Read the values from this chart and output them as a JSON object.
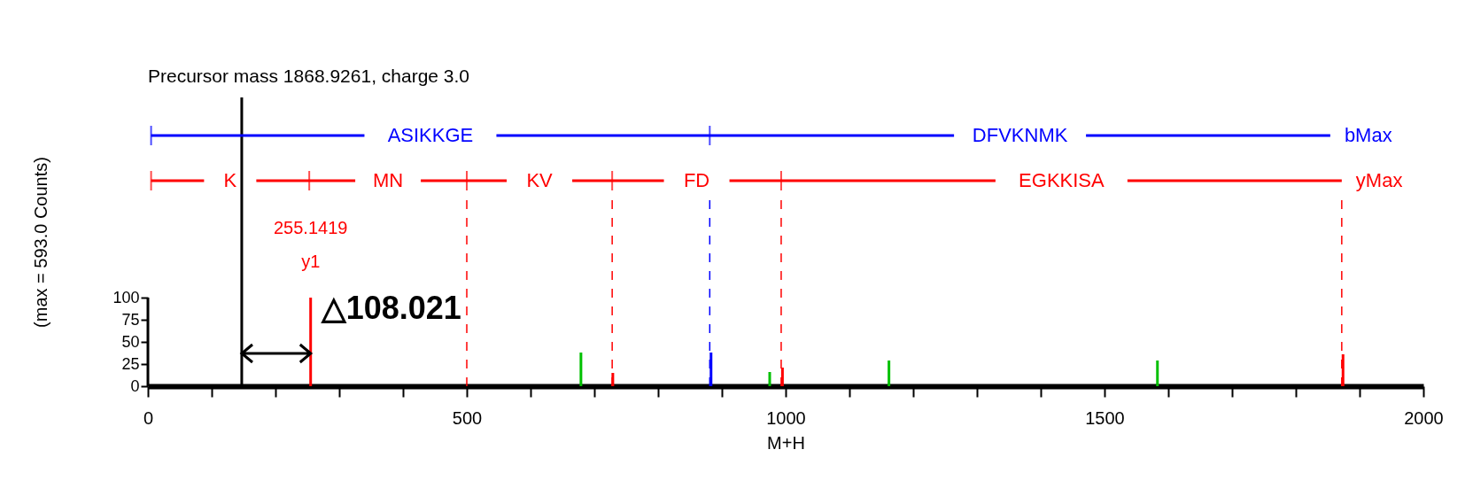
{
  "chart_data": {
    "type": "bar",
    "title": "Precursor mass 1868.9261, charge 3.0",
    "xlabel": "M+H",
    "ylabel": "(max = 593.0 Counts)",
    "xlim": [
      0,
      2000
    ],
    "ylim": [
      0,
      326
    ],
    "xticks": [
      0,
      {
        "value": 100,
        "label": null
      },
      {
        "value": 200,
        "label": null
      },
      {
        "value": 300,
        "label": null
      },
      {
        "value": 400,
        "label": null
      },
      500,
      {
        "value": 600,
        "label": null
      },
      {
        "value": 700,
        "label": null
      },
      {
        "value": 800,
        "label": null
      },
      {
        "value": 900,
        "label": null
      },
      1000,
      {
        "value": 1100,
        "label": null
      },
      {
        "value": 1200,
        "label": null
      },
      {
        "value": 1300,
        "label": null
      },
      {
        "value": 1400,
        "label": null
      },
      1500,
      {
        "value": 1600,
        "label": null
      },
      {
        "value": 1700,
        "label": null
      },
      {
        "value": 1800,
        "label": null
      },
      {
        "value": 1900,
        "label": null
      },
      2000
    ],
    "yticks": [
      0,
      25,
      50,
      75,
      100
    ],
    "grid": false,
    "series": [
      {
        "color": "#ff0000",
        "x": [
          255.14,
          729,
          995,
          1874
        ],
        "values": [
          100,
          15,
          21,
          36
        ]
      },
      {
        "color": "#00c000",
        "x": [
          679,
          975,
          1162,
          1583
        ],
        "values": [
          38,
          16,
          29,
          29
        ]
      },
      {
        "color": "#0000ff",
        "x": [
          883
        ],
        "values": [
          38
        ]
      },
      {
        "type": "line",
        "color": "#0000ff",
        "x": [
          5,
          881,
          1854
        ],
        "values": [
          283,
          283,
          283
        ]
      },
      {
        "type": "line",
        "color": "#ff0000",
        "x": [
          5,
          253,
          500,
          728,
          993,
          1872
        ],
        "values": [
          232,
          232,
          232,
          232,
          232,
          232
        ]
      }
    ],
    "ref_lines": [
      {
        "axis": "x",
        "value": 147.12,
        "color": "#000000",
        "line_style": "solid"
      },
      {
        "axis": "x",
        "value": 500,
        "color": "#ff0000",
        "line_style": "dashed"
      },
      {
        "axis": "x",
        "value": 728,
        "color": "#ff0000",
        "line_style": "dashed"
      },
      {
        "axis": "x",
        "value": 881,
        "color": "#0000ff",
        "line_style": "dashed"
      },
      {
        "axis": "x",
        "value": 993,
        "color": "#ff0000",
        "line_style": "dashed"
      },
      {
        "axis": "x",
        "value": 1872,
        "color": "#ff0000",
        "line_style": "dashed"
      }
    ],
    "annotations": [
      "ASIKKGE",
      "DFVKNMK",
      "bMax",
      "K",
      "MN",
      "KV",
      "FD",
      "EGKKISA",
      "yMax",
      "255.1419",
      "y1",
      {
        "text": "△108.021",
        "x": 255.14,
        "y": 37
      }
    ]
  }
}
